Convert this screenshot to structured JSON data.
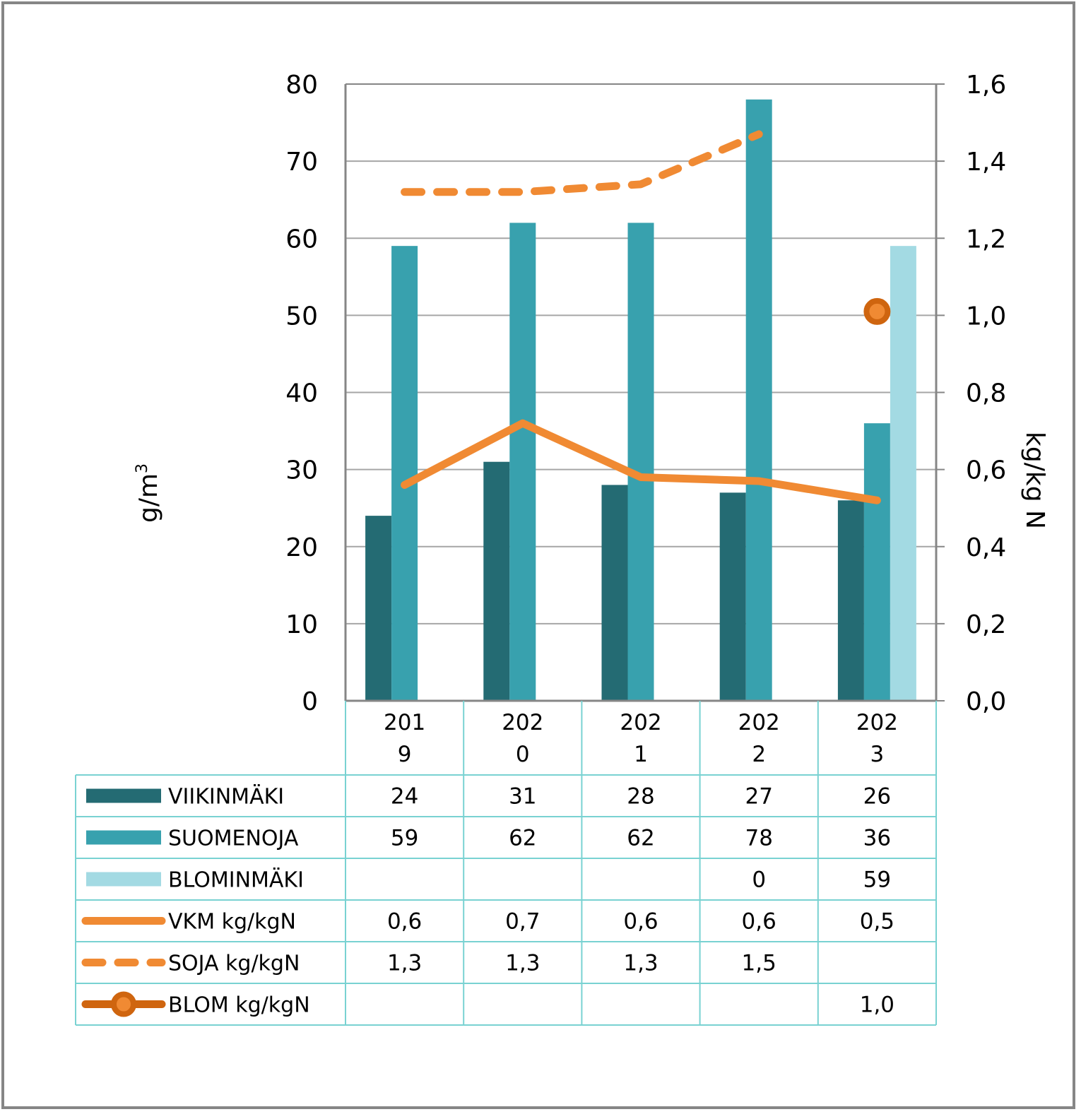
{
  "chart_data": {
    "type": "bar",
    "title": "",
    "categories": [
      "2019",
      "2020",
      "2021",
      "2022",
      "2023"
    ],
    "category_labels": [
      [
        "201",
        "9"
      ],
      [
        "202",
        "0"
      ],
      [
        "202",
        "1"
      ],
      [
        "202",
        "2"
      ],
      [
        "202",
        "3"
      ]
    ],
    "ylabel": "g/m",
    "ylabel_sup": "3",
    "y2label": "kg/kg N",
    "ylim": [
      0,
      80
    ],
    "y2lim": [
      0,
      1.6
    ],
    "yticks": [
      "0",
      "10",
      "20",
      "30",
      "40",
      "50",
      "60",
      "70",
      "80"
    ],
    "y2ticks": [
      "0,0",
      "0,2",
      "0,4",
      "0,6",
      "0,8",
      "1,0",
      "1,2",
      "1,4",
      "1,6"
    ],
    "grid": true,
    "legend": "data-table",
    "series": [
      {
        "name": "VIIKINMÄKI",
        "type": "bar",
        "axis": "left",
        "color": "#246B73",
        "values": [
          24,
          31,
          28,
          27,
          26
        ],
        "labels": [
          "24",
          "31",
          "28",
          "27",
          "26"
        ]
      },
      {
        "name": "SUOMENOJA",
        "type": "bar",
        "axis": "left",
        "color": "#38A1AE",
        "values": [
          59,
          62,
          62,
          78,
          36
        ],
        "labels": [
          "59",
          "62",
          "62",
          "78",
          "36"
        ]
      },
      {
        "name": "BLOMINMÄKI",
        "type": "bar",
        "axis": "left",
        "color": "#A3DAE3",
        "values": [
          null,
          null,
          null,
          0,
          59
        ],
        "labels": [
          "",
          "",
          "",
          "0",
          "59"
        ]
      },
      {
        "name": "VKM kg/kgN",
        "type": "line",
        "axis": "right",
        "style": "solid",
        "color": "#F08A33",
        "values": [
          0.56,
          0.72,
          0.58,
          0.57,
          0.52
        ],
        "labels": [
          "0,6",
          "0,7",
          "0,6",
          "0,6",
          "0,5"
        ]
      },
      {
        "name": "SOJA kg/kgN",
        "type": "line",
        "axis": "right",
        "style": "dashed",
        "color": "#F08A33",
        "values": [
          1.32,
          1.32,
          1.34,
          1.47,
          null
        ],
        "labels": [
          "1,3",
          "1,3",
          "1,3",
          "1,5",
          ""
        ]
      },
      {
        "name": "BLOM kg/kgN",
        "type": "line",
        "axis": "right",
        "style": "marker",
        "color": "#CF650F",
        "marker_fill": "#F08A33",
        "values": [
          null,
          null,
          null,
          null,
          1.01
        ],
        "labels": [
          "",
          "",
          "",
          "",
          "1,0"
        ]
      }
    ]
  },
  "colors": {
    "gridline": "#A6A6A6",
    "axis": "#868686",
    "table_border": "#79D2D2",
    "frame": "#868686"
  }
}
